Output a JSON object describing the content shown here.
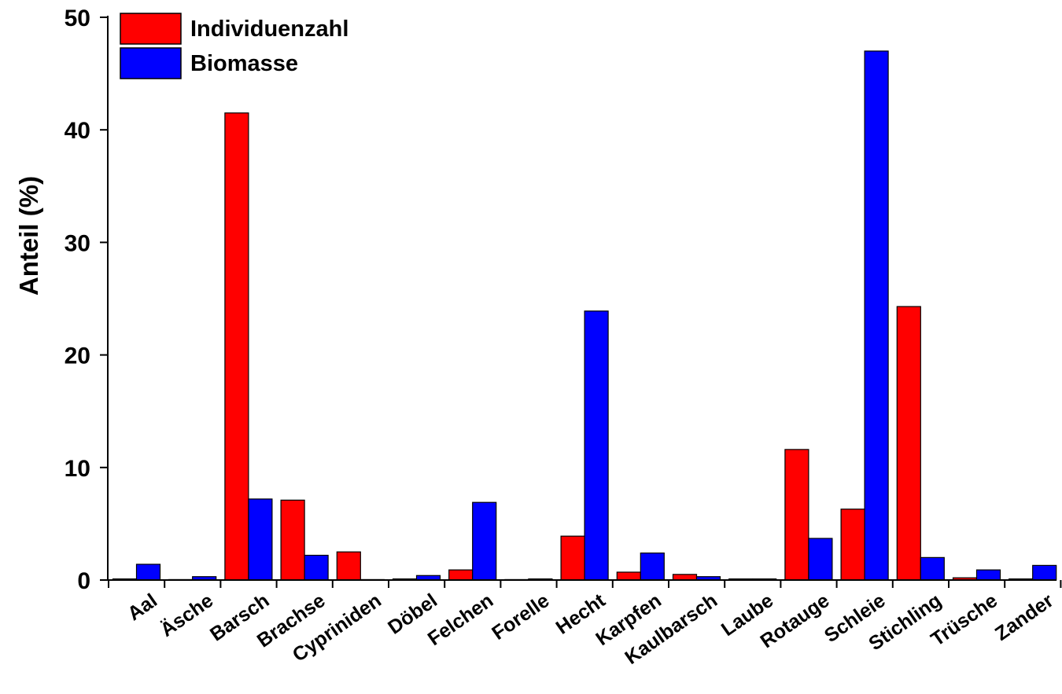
{
  "chart_data": {
    "type": "bar",
    "title": "",
    "xlabel": "",
    "ylabel": "Anteil (%)",
    "ylim": [
      0,
      50
    ],
    "yticks": [
      0,
      10,
      20,
      30,
      40,
      50
    ],
    "grid": false,
    "legend_position": "top-left",
    "categories": [
      "Aal",
      "Äsche",
      "Barsch",
      "Brachse",
      "Cypriniden",
      "Döbel",
      "Felchen",
      "Forelle",
      "Hecht",
      "Karpfen",
      "Kaulbarsch",
      "Laube",
      "Rotauge",
      "Schleie",
      "Stichling",
      "Trüsche",
      "Zander"
    ],
    "series": [
      {
        "name": "Individuenzahl",
        "color": "#ff0000",
        "values": [
          0.1,
          0.0,
          41.5,
          7.1,
          2.5,
          0.1,
          0.9,
          0.0,
          3.9,
          0.7,
          0.5,
          0.1,
          11.6,
          6.3,
          24.3,
          0.2,
          0.1
        ]
      },
      {
        "name": "Biomasse",
        "color": "#0000ff",
        "values": [
          1.4,
          0.3,
          7.2,
          2.2,
          0.0,
          0.4,
          6.9,
          0.1,
          23.9,
          2.4,
          0.3,
          0.1,
          3.7,
          47.0,
          2.0,
          0.9,
          1.3
        ]
      }
    ]
  }
}
